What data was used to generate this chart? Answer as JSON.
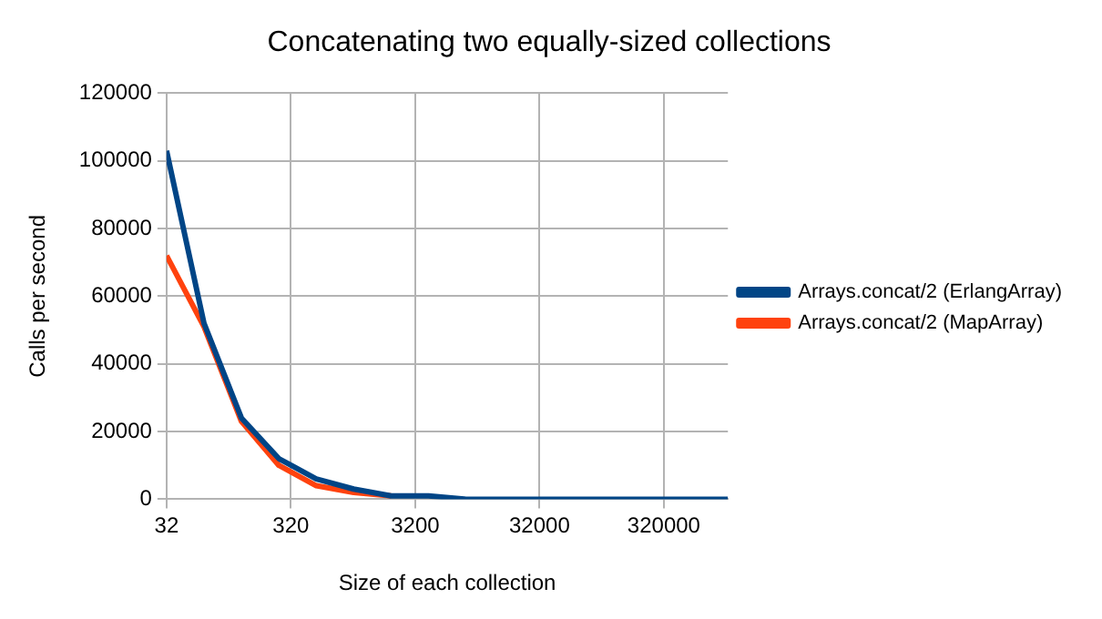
{
  "chart_data": {
    "type": "line",
    "title": "Concatenating two equally-sized collections",
    "xlabel": "Size of each collection",
    "ylabel": "Calls per second",
    "x": [
      32,
      64,
      128,
      256,
      512,
      1024,
      2048,
      4096,
      8192,
      16384,
      32768,
      65536,
      131072,
      262144,
      524288,
      1048576
    ],
    "series": [
      {
        "name": "Arrays.concat/2 (ErlangArray)",
        "color": "#004586",
        "values": [
          103000,
          52000,
          24000,
          12000,
          6000,
          3000,
          1000,
          1000,
          0,
          0,
          0,
          0,
          0,
          0,
          0,
          0
        ]
      },
      {
        "name": "Arrays.concat/2 (MapArray)",
        "color": "#ff420e",
        "values": [
          72000,
          51000,
          23000,
          10000,
          4000,
          2000,
          1000,
          null,
          null,
          null,
          null,
          null,
          null,
          null,
          null,
          null
        ]
      }
    ],
    "log": "x",
    "xlim": [
      32,
      1048576
    ],
    "xticks": [
      32,
      320,
      3200,
      32000,
      320000
    ],
    "ylim": [
      0,
      120000
    ],
    "yticks": [
      0,
      20000,
      40000,
      60000,
      80000,
      100000,
      120000
    ],
    "grid": true,
    "legend": "right",
    "marker": "none",
    "line_style": "solid"
  }
}
